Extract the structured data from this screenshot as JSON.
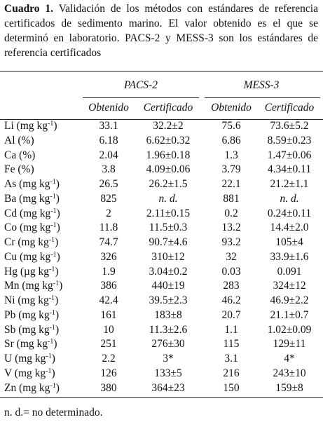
{
  "caption": {
    "label": "Cuadro 1.",
    "text": "Validación de los métodos con estándares de referencia certificados de sedimento marino. El valor obtenido es el que se determinó en laboratorio. PACS-2 y MESS-3 son los estándares de referencia certificados"
  },
  "table": {
    "groups": [
      "PACS-2",
      "MESS-3"
    ],
    "subheaders": [
      "Obtenido",
      "Certificado",
      "Obtenido",
      "Certificado"
    ],
    "rows": [
      {
        "label": {
          "base": "Li (mg kg",
          "sup": "-1",
          "end": ")"
        },
        "cells": [
          "33.1",
          "32.2±2",
          "75.6",
          "73.6±5.2"
        ]
      },
      {
        "label": "Al (%)",
        "cells": [
          "6.18",
          "6.62±0.32",
          "6.86",
          "8.59±0.23"
        ]
      },
      {
        "label": "Ca (%)",
        "cells": [
          "2.04",
          "1.96±0.18",
          "1.3",
          "1.47±0.06"
        ]
      },
      {
        "label": "Fe (%)",
        "cells": [
          "3.8",
          "4.09±0.06",
          "3.79",
          "4.34±0.11"
        ]
      },
      {
        "label": {
          "base": "As (mg kg",
          "sup": "-1",
          "end": ")"
        },
        "cells": [
          "26.5",
          "26.2±1.5",
          "22.1",
          "21.2±1.1"
        ]
      },
      {
        "label": {
          "base": "Ba (mg kg",
          "sup": "-1",
          "end": ")"
        },
        "cells": [
          "825",
          {
            "text": "n. d.",
            "italic": true
          },
          "881",
          {
            "text": "n. d.",
            "italic": true
          }
        ]
      },
      {
        "label": {
          "base": "Cd (mg kg",
          "sup": "-1",
          "end": ")"
        },
        "cells": [
          "2",
          "2.11±0.15",
          "0.2",
          "0.24±0.11"
        ]
      },
      {
        "label": {
          "base": "Co (mg kg",
          "sup": "-1",
          "end": ")"
        },
        "cells": [
          "11.8",
          "11.5±0.3",
          "13.2",
          "14.4±2.0"
        ]
      },
      {
        "label": {
          "base": "Cr (mg kg",
          "sup": "-1",
          "end": ")"
        },
        "cells": [
          "74.7",
          "90.7±4.6",
          "93.2",
          "105±4"
        ]
      },
      {
        "label": {
          "base": "Cu (mg kg",
          "sup": "-1",
          "end": ")"
        },
        "cells": [
          "326",
          "310±12",
          "32",
          "33.9±1.6"
        ]
      },
      {
        "label": {
          "base": "Hg (µg kg",
          "sup": "-1",
          "end": ")"
        },
        "cells": [
          "1.9",
          "3.04±0.2",
          "0.03",
          "0.091"
        ]
      },
      {
        "label": {
          "base": "Mn (mg kg",
          "sup": "-1",
          "end": ")"
        },
        "cells": [
          "386",
          "440±19",
          "283",
          "324±12"
        ]
      },
      {
        "label": {
          "base": "Ni (mg kg",
          "sup": "-1",
          "end": ")"
        },
        "cells": [
          "42.4",
          "39.5±2.3",
          "46.2",
          "46.9±2.2"
        ]
      },
      {
        "label": {
          "base": "Pb (mg kg",
          "sup": "-1",
          "end": ")"
        },
        "cells": [
          "161",
          "183±8",
          "20.7",
          "21.1±0.7"
        ]
      },
      {
        "label": {
          "base": "Sb (mg kg",
          "sup": "-1",
          "end": ")"
        },
        "cells": [
          "10",
          "11.3±2.6",
          "1.1",
          "1.02±0.09"
        ]
      },
      {
        "label": {
          "base": "Sr (mg kg",
          "sup": "-1",
          "end": ")"
        },
        "cells": [
          "251",
          "276±30",
          "115",
          "129±11"
        ]
      },
      {
        "label": {
          "base": "U (mg kg",
          "sup": "-1",
          "end": ")"
        },
        "cells": [
          "2.2",
          "3*",
          "3.1",
          "4*"
        ]
      },
      {
        "label": {
          "base": "V (mg kg",
          "sup": "-1",
          "end": ")"
        },
        "cells": [
          "126",
          "133±5",
          "216",
          "243±10"
        ]
      },
      {
        "label": {
          "base": "Zn (mg kg",
          "sup": "-1",
          "end": ")"
        },
        "cells": [
          "380",
          "364±23",
          "150",
          "159±8"
        ]
      }
    ]
  },
  "footnote": "n. d.= no determinado."
}
